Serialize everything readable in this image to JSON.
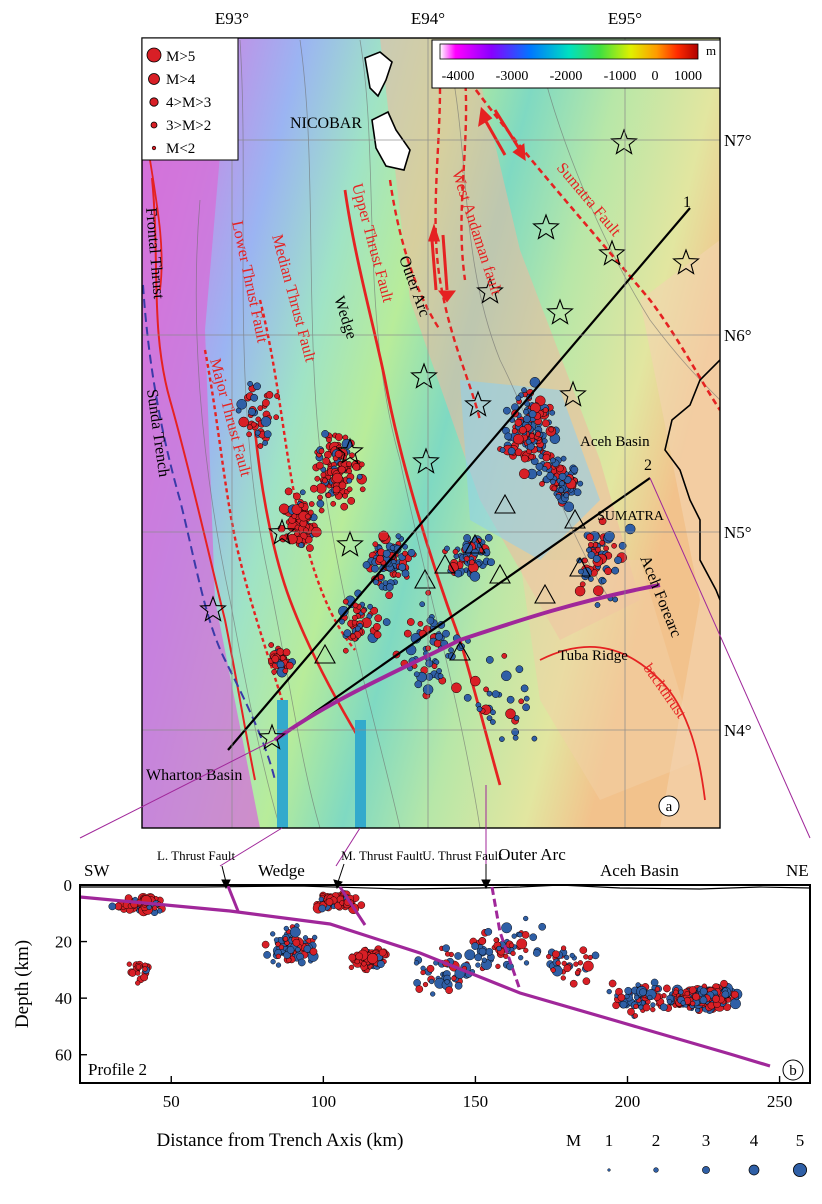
{
  "map": {
    "lon_ticks": [
      "E93°",
      "E94°",
      "E95°"
    ],
    "lat_ticks": [
      "N7°",
      "N6°",
      "N5°",
      "N4°"
    ],
    "panel_label": "a",
    "colorbar": {
      "unit": "m",
      "tick_labels": [
        "-4000",
        "-3000",
        "-2000",
        "-1000",
        "0",
        "1000"
      ]
    },
    "legend": [
      "M>5",
      "M>4",
      "4>M>3",
      "3>M>2",
      "M<2"
    ],
    "labels": {
      "nicobar": "NICOBAR",
      "sumatra": "SUMATRA",
      "frontal_thrust": "Frontal Thrust",
      "lower_thrust_fault": "Lower Thrust Fault",
      "median_thrust_fault": "Median Thrust Fault",
      "upper_thrust_fault": "Upper Thrust Fault",
      "major_thrust_fault": "Major Thrust Fault",
      "sunda_trench": "Sunda Trench",
      "wedge": "Wedge",
      "outer_arc": "Outer Arc",
      "west_andaman_fault": "West Andaman fault",
      "sumatra_fault": "Sumatra Fault",
      "aceh_basin": "Aceh Basin",
      "aceh_forearc": "Aceh Forearc",
      "tuba_ridge": "Tuba Ridge",
      "backthrust": "backthrust",
      "wharton_basin": "Wharton Basin",
      "profile_1": "1",
      "profile_2": "2"
    },
    "colors": {
      "fault": "#e52222",
      "profile_line": "#000000",
      "slab": "#a0279a",
      "trench": "#3a3aa8",
      "event_red": "#d81f26",
      "event_blue": "#2f5fa6",
      "cyan_marker": "#33aacc"
    }
  },
  "profile": {
    "panel_label": "b",
    "name": "Profile 2",
    "ylabel": "Depth (km)",
    "xlabel": "Distance from Trench Axis (km)",
    "x_ticks": [
      "50",
      "100",
      "150",
      "200",
      "250"
    ],
    "y_ticks": [
      "0",
      "20",
      "40",
      "60"
    ],
    "end_left": "SW",
    "end_right": "NE",
    "top_labels": {
      "wedge": "Wedge",
      "outer_arc": "Outer Arc",
      "aceh_basin": "Aceh Basin",
      "l_thrust": "L. Thrust Fault",
      "m_thrust": "M. Thrust Fault",
      "u_thrust": "U. Thrust Fault"
    },
    "magnitude_legend": {
      "label": "M",
      "values": [
        "1",
        "2",
        "3",
        "4",
        "5"
      ]
    }
  }
}
